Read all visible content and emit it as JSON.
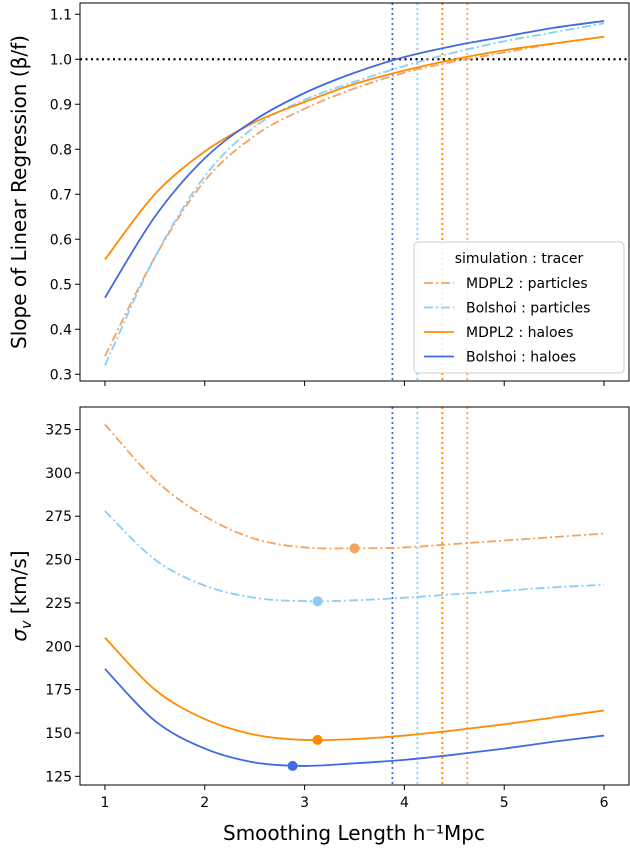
{
  "chart_data": [
    {
      "type": "line",
      "xlabel": "",
      "ylabel": "Slope of Linear Regression (β/f)",
      "xlim": [
        0.75,
        6.25
      ],
      "ylim": [
        0.285,
        1.125
      ],
      "xticks": [
        1,
        2,
        3,
        4,
        5,
        6
      ],
      "yticks": [
        0.3,
        0.4,
        0.5,
        0.6,
        0.7,
        0.8,
        0.9,
        1.0,
        1.1
      ],
      "ytick_labels": [
        "0.3",
        "0.4",
        "0.5",
        "0.6",
        "0.7",
        "0.8",
        "0.9",
        "1.0",
        "1.1"
      ],
      "hline": {
        "y": 1.0,
        "style": "dotted",
        "color": "#000000"
      },
      "legend": {
        "title": "simulation : tracer",
        "placement": "lower-right",
        "entries": [
          {
            "label": "MDPL2 : particles",
            "color": "#f4a460",
            "style": "dashdot"
          },
          {
            "label": "Bolshoi : particles",
            "color": "#87cefa",
            "style": "dashdot"
          },
          {
            "label": "MDPL2 : haloes",
            "color": "#ff8c00",
            "style": "solid"
          },
          {
            "label": "Bolshoi : haloes",
            "color": "#4169e1",
            "style": "solid"
          }
        ]
      },
      "series": [
        {
          "name": "MDPL2 : particles",
          "color": "#f4a460",
          "style": "dashdot",
          "x": [
            1.0,
            1.5,
            2.0,
            2.5,
            3.0,
            3.5,
            4.0,
            4.5,
            5.0,
            5.5,
            6.0
          ],
          "y": [
            0.34,
            0.56,
            0.73,
            0.83,
            0.89,
            0.935,
            0.97,
            0.995,
            1.015,
            1.035,
            1.05
          ]
        },
        {
          "name": "Bolshoi : particles",
          "color": "#87cefa",
          "style": "dashdot",
          "x": [
            1.0,
            1.5,
            2.0,
            2.5,
            3.0,
            3.5,
            4.0,
            4.5,
            5.0,
            5.5,
            6.0
          ],
          "y": [
            0.32,
            0.56,
            0.74,
            0.85,
            0.91,
            0.95,
            0.985,
            1.015,
            1.04,
            1.06,
            1.08
          ]
        },
        {
          "name": "MDPL2 : haloes",
          "color": "#ff8c00",
          "style": "solid",
          "x": [
            1.0,
            1.5,
            2.0,
            2.5,
            3.0,
            3.5,
            4.0,
            4.5,
            5.0,
            5.5,
            6.0
          ],
          "y": [
            0.555,
            0.7,
            0.795,
            0.86,
            0.905,
            0.945,
            0.975,
            1.0,
            1.02,
            1.035,
            1.05
          ]
        },
        {
          "name": "Bolshoi : haloes",
          "color": "#4169e1",
          "style": "solid",
          "x": [
            1.0,
            1.5,
            2.0,
            2.5,
            3.0,
            3.5,
            4.0,
            4.5,
            5.0,
            5.5,
            6.0
          ],
          "y": [
            0.47,
            0.65,
            0.78,
            0.865,
            0.925,
            0.97,
            1.005,
            1.03,
            1.05,
            1.07,
            1.085
          ]
        }
      ],
      "vlines": [
        {
          "x": 3.88,
          "color": "#4169e1",
          "style": "dotted"
        },
        {
          "x": 4.13,
          "color": "#87cefa",
          "style": "dotted"
        },
        {
          "x": 4.38,
          "color": "#ff8c00",
          "style": "dotted"
        },
        {
          "x": 4.63,
          "color": "#f4a460",
          "style": "dotted"
        }
      ]
    },
    {
      "type": "line",
      "xlabel": "Smoothing Length h⁻¹Mpc",
      "ylabel": "σ",
      "ylabel_sub": "v",
      "ylabel_tail": " [km/s]",
      "xlim": [
        0.75,
        6.25
      ],
      "ylim": [
        120,
        338
      ],
      "xticks": [
        1,
        2,
        3,
        4,
        5,
        6
      ],
      "xtick_labels": [
        "1",
        "2",
        "3",
        "4",
        "5",
        "6"
      ],
      "yticks": [
        125,
        150,
        175,
        200,
        225,
        250,
        275,
        300,
        325
      ],
      "ytick_labels": [
        "125",
        "150",
        "175",
        "200",
        "225",
        "250",
        "275",
        "300",
        "325"
      ],
      "series": [
        {
          "name": "MDPL2 : particles",
          "color": "#f4a460",
          "style": "dashdot",
          "x": [
            1.0,
            1.5,
            2.0,
            2.5,
            3.0,
            3.5,
            4.0,
            4.5,
            5.0,
            5.5,
            6.0
          ],
          "y": [
            328,
            296,
            275,
            262,
            257,
            256.5,
            257,
            259,
            261,
            263,
            265
          ]
        },
        {
          "name": "Bolshoi : particles",
          "color": "#87cefa",
          "style": "dashdot",
          "x": [
            1.0,
            1.5,
            2.0,
            2.5,
            3.0,
            3.5,
            4.0,
            4.5,
            5.0,
            5.5,
            6.0
          ],
          "y": [
            278,
            250,
            235,
            228,
            226,
            226.5,
            228,
            230,
            232,
            234,
            235.5
          ]
        },
        {
          "name": "MDPL2 : haloes",
          "color": "#ff8c00",
          "style": "solid",
          "x": [
            1.0,
            1.5,
            2.0,
            2.5,
            3.0,
            3.5,
            4.0,
            4.5,
            5.0,
            5.5,
            6.0
          ],
          "y": [
            205,
            175,
            158,
            149,
            146,
            146.5,
            148.5,
            151.5,
            155,
            159,
            163
          ]
        },
        {
          "name": "Bolshoi : haloes",
          "color": "#4169e1",
          "style": "solid",
          "x": [
            1.0,
            1.5,
            2.0,
            2.5,
            3.0,
            3.5,
            4.0,
            4.5,
            5.0,
            5.5,
            6.0
          ],
          "y": [
            187,
            157,
            141,
            133,
            131,
            132.5,
            134.5,
            137.5,
            141,
            145,
            148.5
          ]
        }
      ],
      "minima": [
        {
          "x": 3.5,
          "y": 256.5,
          "color": "#f4a460"
        },
        {
          "x": 3.13,
          "y": 226.0,
          "color": "#87cefa"
        },
        {
          "x": 3.13,
          "y": 146.0,
          "color": "#ff8c00"
        },
        {
          "x": 2.88,
          "y": 131.0,
          "color": "#4169e1"
        }
      ],
      "vlines": [
        {
          "x": 3.88,
          "color": "#4169e1",
          "style": "dotted"
        },
        {
          "x": 4.13,
          "color": "#87cefa",
          "style": "dotted"
        },
        {
          "x": 4.38,
          "color": "#ff8c00",
          "style": "dotted"
        },
        {
          "x": 4.63,
          "color": "#f4a460",
          "style": "dotted"
        }
      ]
    }
  ]
}
